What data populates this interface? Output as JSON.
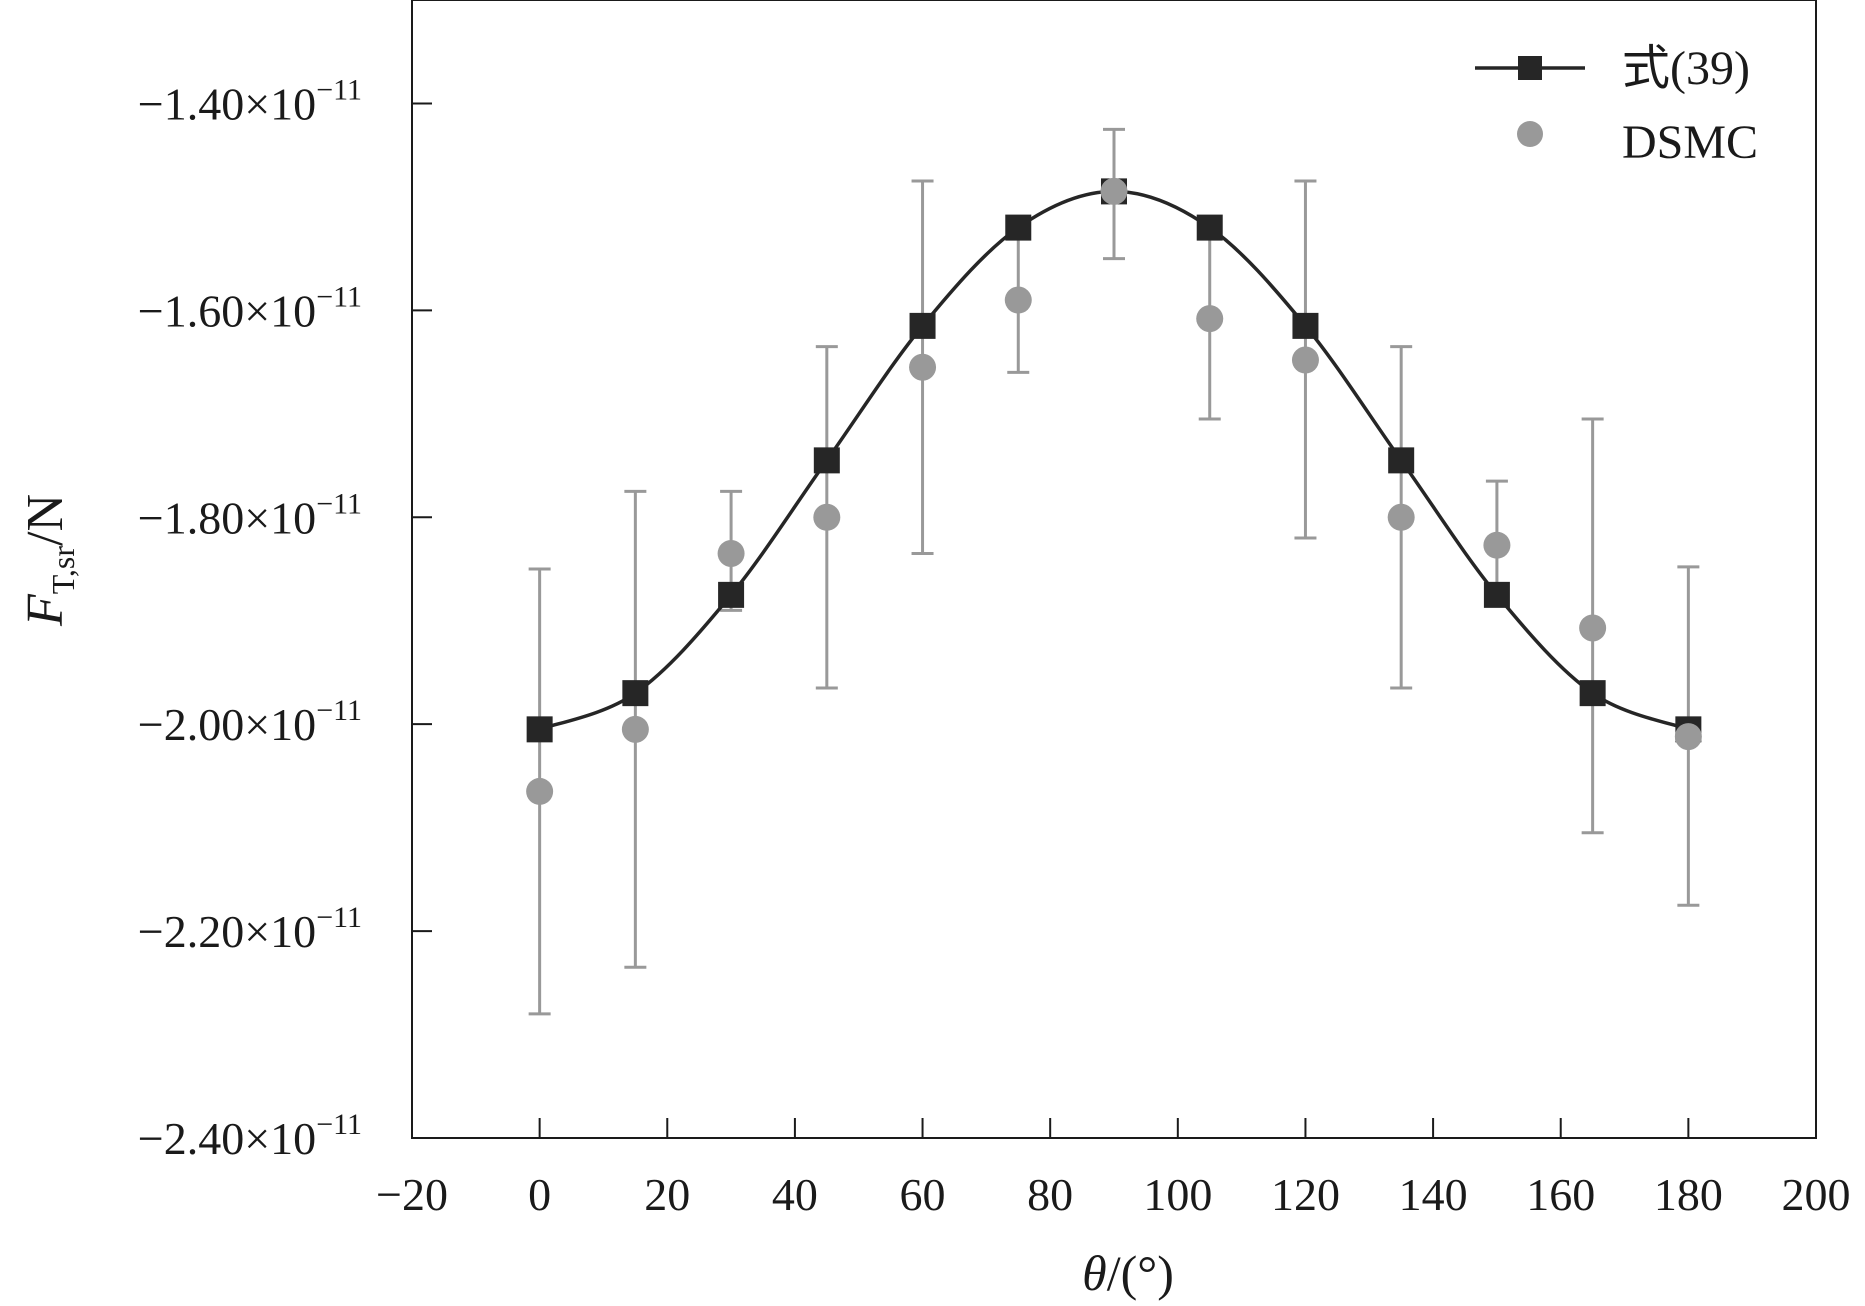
{
  "chart_data": {
    "type": "line",
    "xlabel": {
      "var": "θ",
      "unit": "/(°)"
    },
    "ylabel": {
      "var": "F",
      "sub": "T,sr",
      "unit": "/N"
    },
    "xlim": [
      -20,
      200
    ],
    "ylim": [
      -2.4e-11,
      -1.3e-11
    ],
    "x_ticks": [
      -20,
      0,
      20,
      40,
      60,
      80,
      100,
      120,
      140,
      160,
      180,
      200
    ],
    "y_ticks": [
      {
        "value": -1.4e-11,
        "mantissa": "−1.40",
        "times": "×",
        "base": "10",
        "exp": "−11"
      },
      {
        "value": -1.6e-11,
        "mantissa": "−1.60",
        "times": "×",
        "base": "10",
        "exp": "−11"
      },
      {
        "value": -1.8e-11,
        "mantissa": "−1.80",
        "times": "×",
        "base": "10",
        "exp": "−11"
      },
      {
        "value": -2e-11,
        "mantissa": "−2.00",
        "times": "×",
        "base": "10",
        "exp": "−11"
      },
      {
        "value": -2.2e-11,
        "mantissa": "−2.20",
        "times": "×",
        "base": "10",
        "exp": "−11"
      },
      {
        "value": -2.4e-11,
        "mantissa": "−2.40",
        "times": "×",
        "base": "10",
        "exp": "−11"
      }
    ],
    "legend_position": "top-right",
    "series": [
      {
        "name": "式(39)",
        "kind": "line-square",
        "color": "#262626",
        "x": [
          0,
          15,
          30,
          45,
          60,
          75,
          90,
          105,
          120,
          135,
          150,
          165,
          180
        ],
        "y": [
          -2.005e-11,
          -1.97e-11,
          -1.875e-11,
          -1.745e-11,
          -1.615e-11,
          -1.52e-11,
          -1.485e-11,
          -1.52e-11,
          -1.615e-11,
          -1.745e-11,
          -1.875e-11,
          -1.97e-11,
          -2.005e-11
        ]
      },
      {
        "name": "DSMC",
        "kind": "scatter-errorbar",
        "color": "#999999",
        "x": [
          0,
          15,
          30,
          45,
          60,
          75,
          90,
          105,
          120,
          135,
          150,
          165,
          180
        ],
        "y": [
          -2.065e-11,
          -2.005e-11,
          -1.835e-11,
          -1.8e-11,
          -1.655e-11,
          -1.59e-11,
          -1.485e-11,
          -1.608e-11,
          -1.648e-11,
          -1.8e-11,
          -1.827e-11,
          -1.907e-11,
          -2.012e-11
        ],
        "err_low": [
          -2.28e-11,
          -2.235e-11,
          -1.89e-11,
          -1.965e-11,
          -1.835e-11,
          -1.66e-11,
          -1.55e-11,
          -1.705e-11,
          -1.82e-11,
          -1.965e-11,
          -1.885e-11,
          -2.105e-11,
          -2.175e-11
        ],
        "err_high": [
          -1.85e-11,
          -1.775e-11,
          -1.775e-11,
          -1.635e-11,
          -1.475e-11,
          -1.525e-11,
          -1.425e-11,
          -1.51e-11,
          -1.475e-11,
          -1.635e-11,
          -1.765e-11,
          -1.705e-11,
          -1.848e-11
        ]
      }
    ]
  }
}
